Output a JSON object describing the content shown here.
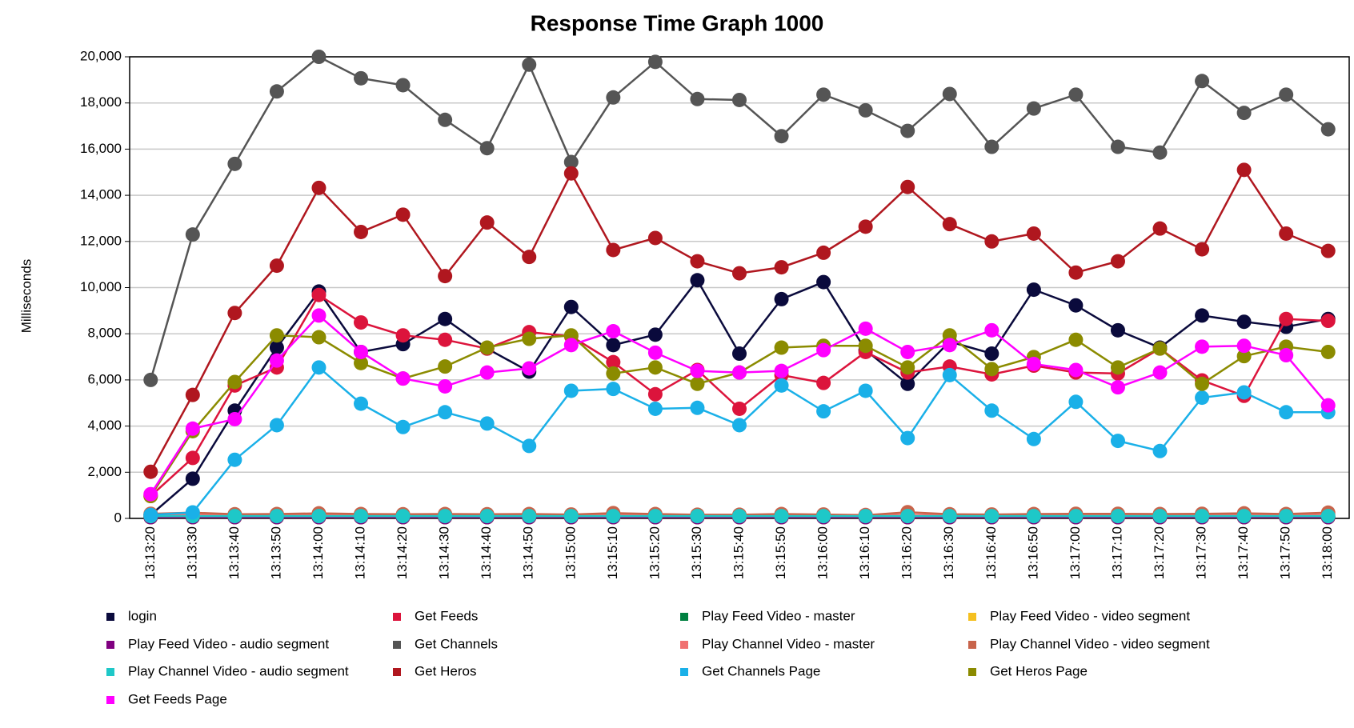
{
  "chart_data": {
    "type": "line",
    "title": "Response Time Graph 1000",
    "y_label": "Milliseconds",
    "grid": true,
    "legend": "bottom",
    "categories": [
      "13:13:20",
      "13:13:30",
      "13:13:40",
      "13:13:50",
      "13:14:00",
      "13:14:10",
      "13:14:20",
      "13:14:30",
      "13:14:40",
      "13:14:50",
      "13:15:00",
      "13:15:10",
      "13:15:20",
      "13:15:30",
      "13:15:40",
      "13:15:50",
      "13:16:00",
      "13:16:10",
      "13:16:20",
      "13:16:30",
      "13:16:40",
      "13:16:50",
      "13:17:00",
      "13:17:10",
      "13:17:20",
      "13:17:30",
      "13:17:40",
      "13:17:50",
      "13:18:00"
    ],
    "ylim": [
      0,
      20000
    ],
    "yticks": [
      0,
      {
        "value": 2000,
        "label": "2,000"
      },
      {
        "value": 4000,
        "label": "4,000"
      },
      {
        "value": 6000,
        "label": "6,000"
      },
      {
        "value": 8000,
        "label": "8,000"
      },
      {
        "value": 10000,
        "label": "10,000"
      },
      {
        "value": 12000,
        "label": "12,000"
      },
      {
        "value": 14000,
        "label": "14,000"
      },
      {
        "value": 16000,
        "label": "16,000"
      },
      {
        "value": 18000,
        "label": "18,000"
      },
      {
        "value": 20000,
        "label": "20,000"
      }
    ],
    "series": [
      {
        "name": "login",
        "color": "#0a0a3c",
        "values": [
          150,
          1720,
          4670,
          7400,
          9830,
          7210,
          7550,
          8640,
          7360,
          6360,
          9160,
          7510,
          7960,
          10320,
          7140,
          9500,
          10240,
          7290,
          5830,
          7660,
          7140,
          9910,
          9230,
          8150,
          7400,
          8790,
          8520,
          8300,
          8640
        ]
      },
      {
        "name": "Get Feeds",
        "color": "#dc143c",
        "values": [
          970,
          2620,
          5760,
          6540,
          9680,
          8490,
          7930,
          7740,
          7360,
          8070,
          7890,
          6770,
          5380,
          6430,
          4750,
          6210,
          5870,
          7210,
          6320,
          6580,
          6240,
          6620,
          6320,
          6280,
          7360,
          5980,
          5310,
          8640,
          8560
        ]
      },
      {
        "name": "Play Feed Video - master",
        "color": "#008040",
        "values": [
          50,
          50,
          50,
          50,
          50,
          50,
          50,
          50,
          50,
          50,
          50,
          50,
          50,
          50,
          50,
          50,
          50,
          50,
          50,
          50,
          50,
          50,
          50,
          50,
          50,
          50,
          50,
          50,
          50
        ]
      },
      {
        "name": "Play Feed Video - video segment",
        "color": "#f5c020",
        "values": [
          50,
          50,
          50,
          50,
          50,
          50,
          50,
          50,
          50,
          50,
          50,
          50,
          50,
          50,
          50,
          50,
          50,
          50,
          50,
          50,
          50,
          50,
          50,
          50,
          50,
          50,
          50,
          50,
          50
        ]
      },
      {
        "name": "Play Feed Video - audio segment",
        "color": "#800080",
        "values": [
          50,
          50,
          50,
          50,
          50,
          50,
          50,
          50,
          50,
          50,
          50,
          50,
          50,
          50,
          50,
          50,
          50,
          50,
          50,
          50,
          50,
          50,
          50,
          50,
          50,
          50,
          50,
          50,
          50
        ]
      },
      {
        "name": "Get Channels",
        "color": "#555555",
        "values": [
          6000,
          12300,
          15360,
          18500,
          20000,
          19070,
          18770,
          17270,
          16040,
          19660,
          15440,
          18240,
          19780,
          18170,
          18130,
          16560,
          18360,
          17680,
          16790,
          18390,
          16100,
          17760,
          18360,
          16100,
          15850,
          18950,
          17570,
          18360,
          16860
        ]
      },
      {
        "name": "Play Channel Video - master",
        "color": "#f07070",
        "values": [
          150,
          150,
          150,
          150,
          150,
          150,
          150,
          150,
          150,
          150,
          150,
          150,
          150,
          150,
          150,
          150,
          150,
          150,
          150,
          150,
          150,
          150,
          150,
          150,
          150,
          150,
          150,
          150,
          150
        ]
      },
      {
        "name": "Play Channel Video - video segment",
        "color": "#c8644b",
        "values": [
          200,
          250,
          180,
          190,
          220,
          190,
          180,
          190,
          180,
          190,
          170,
          230,
          190,
          160,
          160,
          190,
          170,
          140,
          270,
          180,
          170,
          190,
          200,
          200,
          190,
          200,
          220,
          190,
          250
        ]
      },
      {
        "name": "Play Channel Video - audio segment",
        "color": "#1ec8c8",
        "values": [
          100,
          100,
          100,
          100,
          100,
          100,
          100,
          100,
          100,
          100,
          100,
          100,
          100,
          100,
          100,
          100,
          100,
          100,
          100,
          100,
          100,
          100,
          100,
          100,
          100,
          100,
          100,
          100,
          100
        ]
      },
      {
        "name": "Get Heros",
        "color": "#b0171f",
        "values": [
          2020,
          5350,
          8900,
          10950,
          14320,
          12410,
          13160,
          10500,
          12820,
          11330,
          14950,
          11630,
          12150,
          11140,
          10620,
          10880,
          11510,
          12640,
          14360,
          12750,
          12000,
          12340,
          10650,
          11140,
          12560,
          11660,
          15100,
          12340,
          11590
        ]
      },
      {
        "name": "Get Channels Page",
        "color": "#1ab0e8",
        "values": [
          150,
          260,
          2540,
          4040,
          6540,
          4970,
          3960,
          4600,
          4110,
          3140,
          5530,
          5610,
          4750,
          4790,
          4040,
          5760,
          4640,
          5530,
          3480,
          6210,
          4670,
          3440,
          5050,
          3360,
          2920,
          5230,
          5460,
          4600,
          4600
        ]
      },
      {
        "name": "Get Heros Page",
        "color": "#8b8b00",
        "values": [
          970,
          3780,
          5910,
          7930,
          7850,
          6730,
          6060,
          6580,
          7400,
          7780,
          7930,
          6280,
          6540,
          5830,
          6320,
          7400,
          7480,
          7480,
          6540,
          7930,
          6470,
          6990,
          7740,
          6540,
          7360,
          5830,
          7030,
          7440,
          7210
        ]
      },
      {
        "name": "Get Feeds Page",
        "color": "#ff00ff",
        "values": [
          1050,
          3890,
          4300,
          6840,
          8790,
          7210,
          6060,
          5720,
          6320,
          6500,
          7510,
          8110,
          7180,
          6390,
          6320,
          6390,
          7290,
          8220,
          7210,
          7510,
          8150,
          6690,
          6430,
          5680,
          6320,
          7440,
          7480,
          7070,
          4900
        ]
      }
    ]
  }
}
